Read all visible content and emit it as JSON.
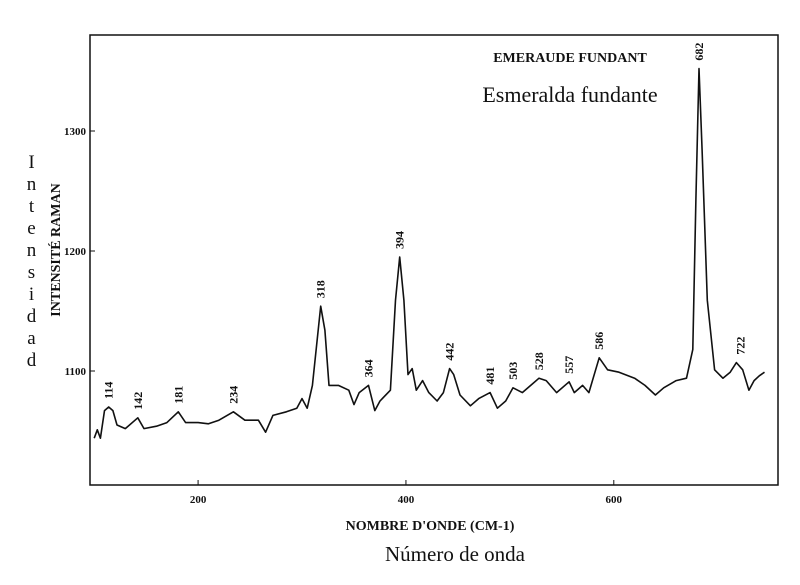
{
  "chart_data": {
    "type": "line",
    "title": "EMERAUDE FUNDANT",
    "subtitle": "Esmeralda fundante",
    "x_label": "NOMBRE D'ONDE (CM-1)",
    "x_label_es": "Número de onda",
    "y_label": "INTENSITÉ RAMAN",
    "y_label_es": "Intensidad",
    "xlim": [
      96,
      758
    ],
    "xticks": [
      200,
      400,
      600
    ],
    "ylim": [
      1005,
      1380
    ],
    "yticks": [
      1100,
      1200,
      1300
    ],
    "color": "#111111",
    "x": [
      100,
      103,
      106,
      110,
      114,
      118,
      122,
      130,
      142,
      148,
      160,
      170,
      181,
      188,
      200,
      210,
      220,
      234,
      245,
      258,
      265,
      272,
      285,
      295,
      300,
      305,
      310,
      318,
      322,
      326,
      335,
      345,
      350,
      355,
      364,
      370,
      375,
      385,
      390,
      394,
      398,
      402,
      406,
      410,
      416,
      422,
      430,
      436,
      442,
      446,
      452,
      462,
      470,
      481,
      488,
      496,
      503,
      512,
      520,
      528,
      535,
      545,
      557,
      562,
      570,
      576,
      586,
      594,
      605,
      620,
      630,
      640,
      648,
      660,
      670,
      676,
      679,
      682,
      685,
      690,
      697,
      705,
      712,
      718,
      724,
      730,
      735,
      740,
      745
    ],
    "values": [
      1044,
      1051,
      1044,
      1067,
      1070,
      1067,
      1055,
      1052,
      1061,
      1052,
      1054,
      1057,
      1066,
      1057,
      1057,
      1056,
      1059,
      1066,
      1059,
      1059,
      1049,
      1063,
      1066,
      1069,
      1077,
      1069,
      1088,
      1154,
      1134,
      1088,
      1088,
      1084,
      1072,
      1082,
      1088,
      1067,
      1075,
      1084,
      1159,
      1195,
      1159,
      1097,
      1102,
      1084,
      1092,
      1082,
      1075,
      1082,
      1102,
      1097,
      1080,
      1071,
      1077,
      1082,
      1069,
      1075,
      1086,
      1082,
      1088,
      1094,
      1092,
      1082,
      1091,
      1082,
      1088,
      1082,
      1111,
      1101,
      1099,
      1094,
      1088,
      1080,
      1086,
      1092,
      1094,
      1118,
      1243,
      1352,
      1284,
      1159,
      1101,
      1094,
      1099,
      1107,
      1101,
      1084,
      1092,
      1096,
      1099
    ],
    "peak_labels": [
      114,
      142,
      181,
      234,
      318,
      364,
      394,
      442,
      481,
      503,
      528,
      557,
      586,
      682,
      722
    ]
  }
}
